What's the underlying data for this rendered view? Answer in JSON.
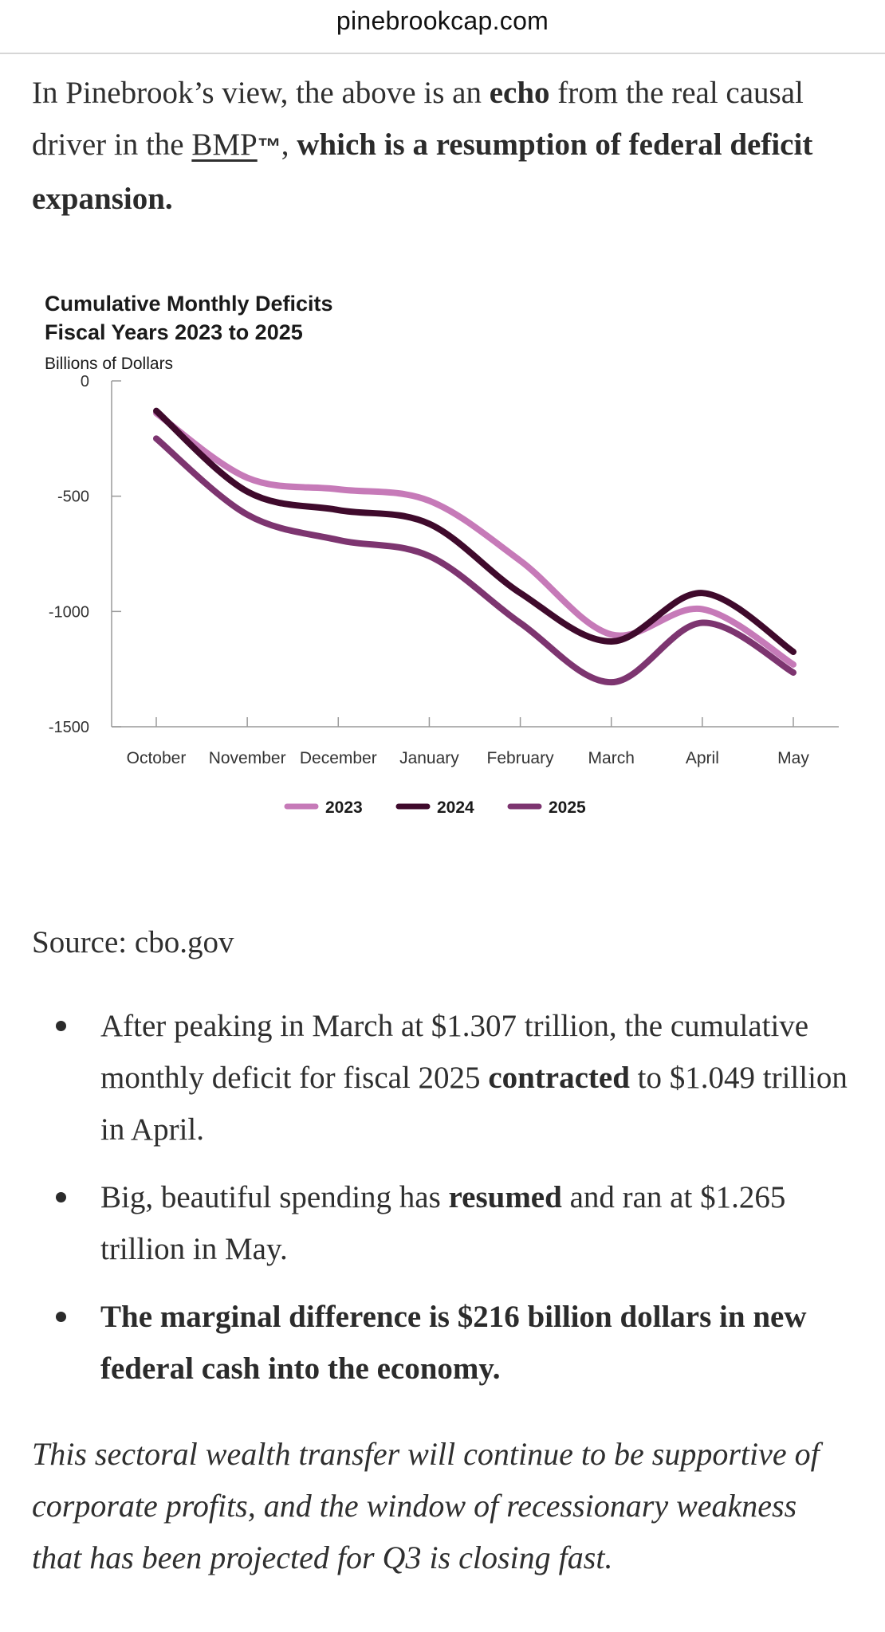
{
  "site": {
    "domain": "pinebrookcap.com"
  },
  "intro": {
    "t1": "In Pinebrook’s view, the above is an ",
    "b1": "echo",
    "t2": " from the real causal driver in the ",
    "link": "BMP",
    "tm": "™",
    "t3": ", ",
    "b2": "which is a resumption of federal deficit expansion."
  },
  "chart_data": {
    "type": "line",
    "title": "Cumulative Monthly Deficits",
    "subtitle": "Fiscal Years 2023 to 2025",
    "ylabel": "Billions of Dollars",
    "xlabel": "",
    "categories": [
      "October",
      "November",
      "December",
      "January",
      "February",
      "March",
      "April",
      "May"
    ],
    "ylim": [
      -1500,
      0
    ],
    "yticks": [
      "0",
      "-500",
      "-1000",
      "-1500"
    ],
    "series": [
      {
        "name": "2023",
        "color": "#c67ab8",
        "values": [
          -140,
          -420,
          -470,
          -520,
          -780,
          -1100,
          -990,
          -1230
        ]
      },
      {
        "name": "2024",
        "color": "#3f0a2c",
        "values": [
          -130,
          -480,
          -560,
          -620,
          -920,
          -1130,
          -920,
          -1175
        ]
      },
      {
        "name": "2025",
        "color": "#7d3570",
        "values": [
          -250,
          -580,
          -690,
          -760,
          -1050,
          -1307,
          -1049,
          -1265
        ]
      }
    ],
    "grid": false,
    "legend": "bottom-center"
  },
  "source": {
    "text": "Source: cbo.gov"
  },
  "bullets": [
    {
      "t1": "After peaking in March at $1.307 trillion, the cumulative monthly deficit for fiscal 2025 ",
      "b1": "contracted",
      "t2": " to $1.049 trillion in April."
    },
    {
      "t1": "Big, beautiful spending has ",
      "b1": "resumed",
      "t2": " and ran at $1.265 trillion in May."
    },
    {
      "b1": "The marginal difference is $216 billion dollars in new federal cash into the economy."
    }
  ],
  "closing": {
    "text": "This sectoral wealth transfer will continue to be supportive of corporate profits, and the window of recessionary weakness that has been projected for Q3 is closing fast."
  }
}
